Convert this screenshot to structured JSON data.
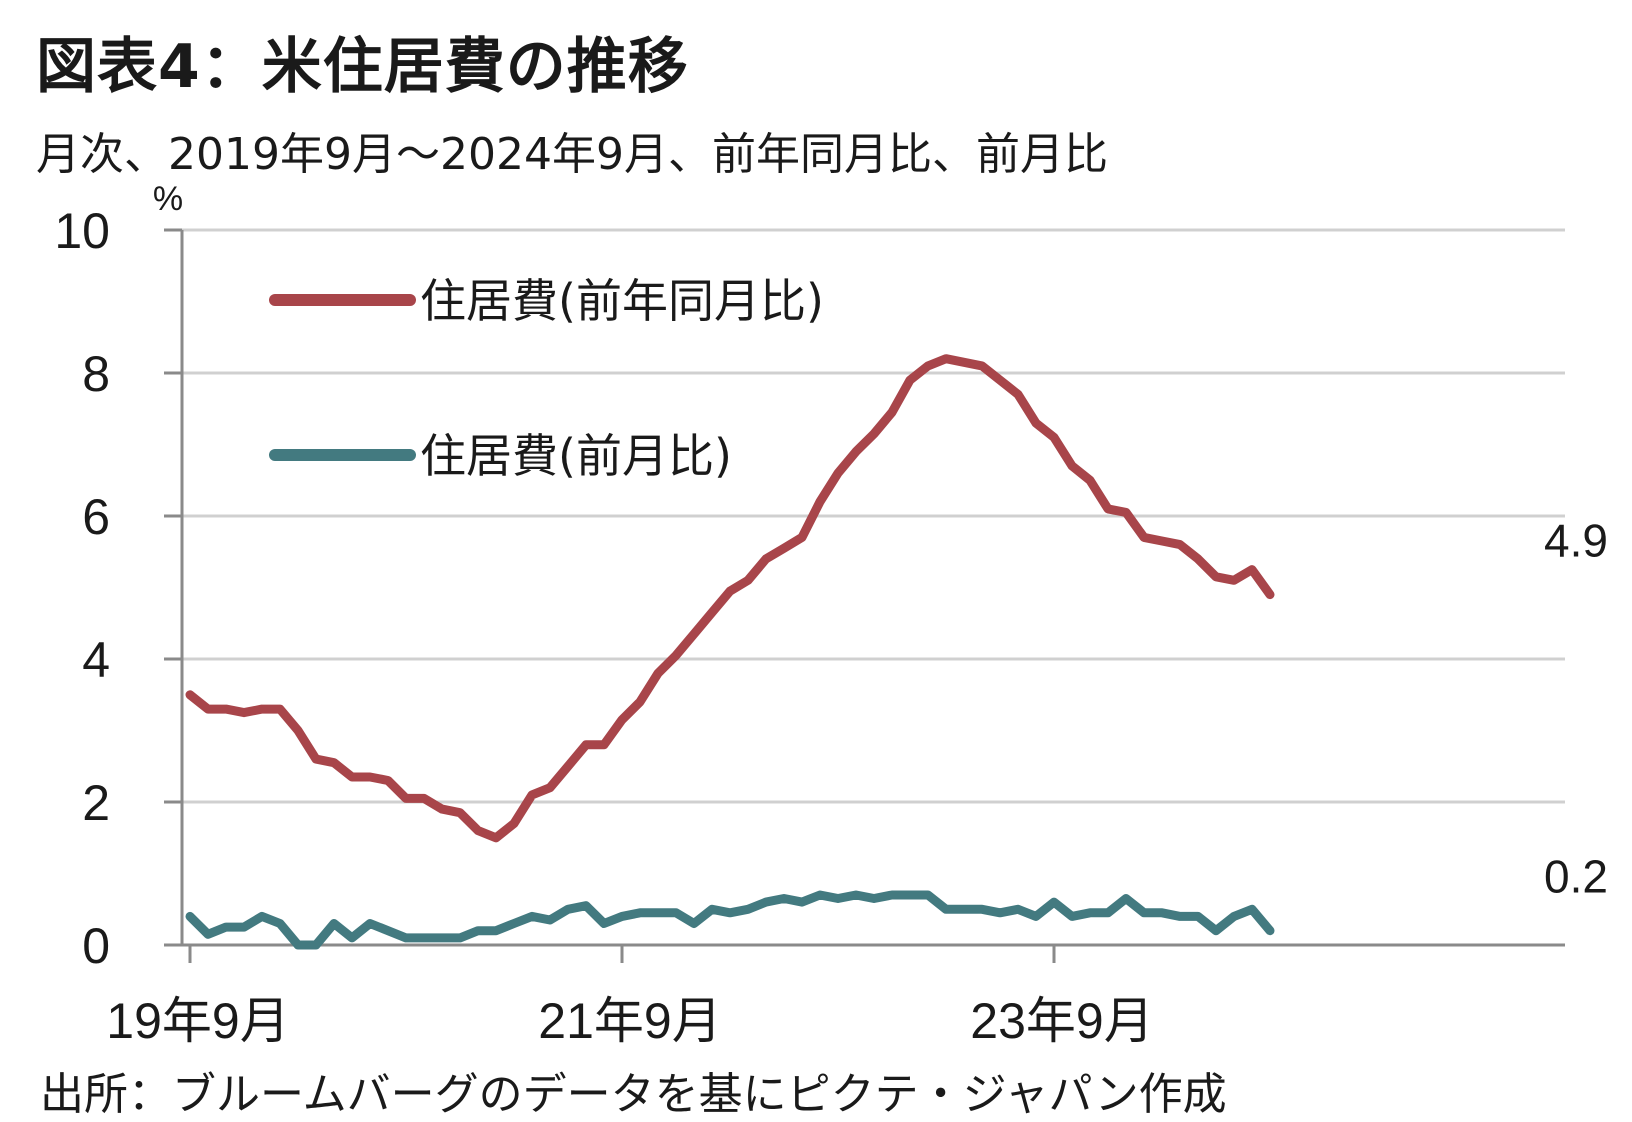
{
  "title": "図表4：米住居費の推移",
  "subtitle": "月次、2019年9月～2024年9月、前年同月比、前月比",
  "source": "出所：ブルームバーグのデータを基にピクテ・ジャパン作成",
  "chart_data": {
    "type": "line",
    "ylabel": "%",
    "ylim": [
      0,
      10
    ],
    "yticks": [
      "0",
      "2",
      "4",
      "6",
      "8",
      "10"
    ],
    "ytick_values": [
      0,
      2,
      4,
      6,
      8,
      10
    ],
    "xtick_labels": [
      "19年9月",
      "21年9月",
      "23年9月"
    ],
    "xtick_indices": [
      0,
      24,
      48
    ],
    "x_start": "2019-09",
    "x_end": "2024-09",
    "grid": true,
    "legend_position": "top-left",
    "series": [
      {
        "name": "住居費(前年同月比)",
        "color": "#a8454a",
        "end_label": "4.9",
        "values": [
          3.5,
          3.3,
          3.3,
          3.25,
          3.3,
          3.3,
          3.0,
          2.6,
          2.55,
          2.35,
          2.35,
          2.3,
          2.05,
          2.05,
          1.9,
          1.85,
          1.6,
          1.5,
          1.7,
          2.1,
          2.2,
          2.5,
          2.8,
          2.8,
          3.15,
          3.4,
          3.8,
          4.05,
          4.35,
          4.65,
          4.95,
          5.1,
          5.4,
          5.55,
          5.7,
          6.2,
          6.6,
          6.9,
          7.15,
          7.45,
          7.9,
          8.1,
          8.2,
          8.15,
          8.1,
          7.9,
          7.7,
          7.3,
          7.1,
          6.7,
          6.5,
          6.1,
          6.05,
          5.7,
          5.65,
          5.6,
          5.4,
          5.15,
          5.1,
          5.25,
          4.9
        ]
      },
      {
        "name": "住居費(前月比)",
        "color": "#437a80",
        "end_label": "0.2",
        "values": [
          0.4,
          0.15,
          0.25,
          0.25,
          0.4,
          0.3,
          0.0,
          0.0,
          0.3,
          0.1,
          0.3,
          0.2,
          0.1,
          0.1,
          0.1,
          0.1,
          0.2,
          0.2,
          0.3,
          0.4,
          0.35,
          0.5,
          0.55,
          0.3,
          0.4,
          0.45,
          0.45,
          0.45,
          0.3,
          0.5,
          0.45,
          0.5,
          0.6,
          0.65,
          0.6,
          0.7,
          0.65,
          0.7,
          0.65,
          0.7,
          0.7,
          0.7,
          0.5,
          0.5,
          0.5,
          0.45,
          0.5,
          0.4,
          0.6,
          0.4,
          0.45,
          0.45,
          0.65,
          0.45,
          0.45,
          0.4,
          0.4,
          0.2,
          0.4,
          0.5,
          0.2
        ]
      }
    ]
  }
}
